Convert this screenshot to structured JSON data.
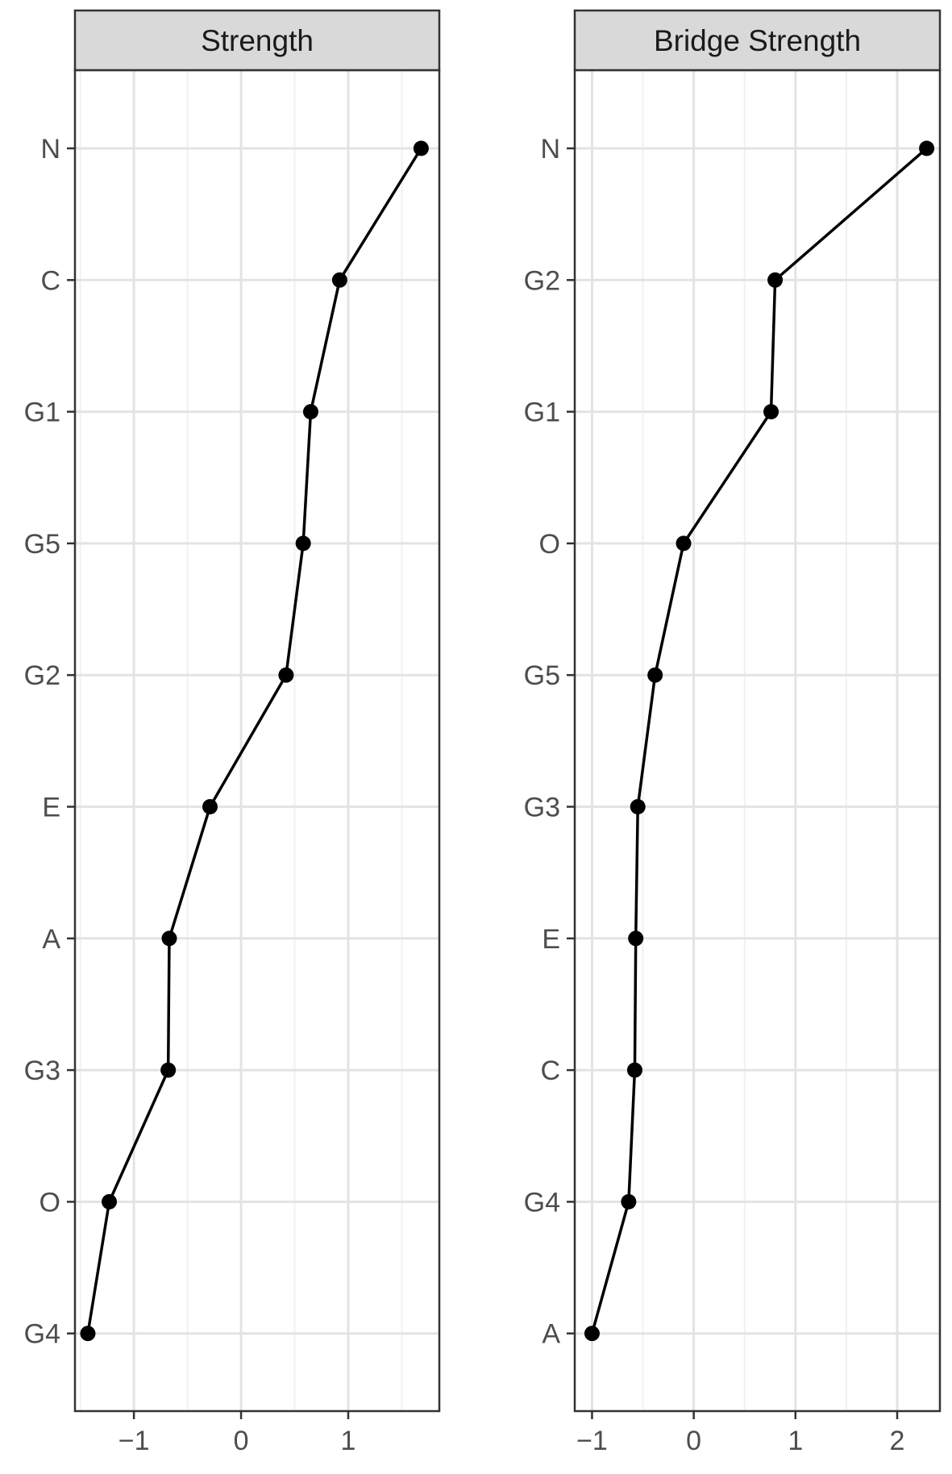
{
  "chart_data": [
    {
      "type": "line",
      "title": "Strength",
      "xlim": [
        -1.55,
        1.85
      ],
      "x_ticks": [
        -1,
        0,
        1
      ],
      "x_minor": [
        -1.5,
        -0.5,
        0.5,
        1.5
      ],
      "categories": [
        "N",
        "C",
        "G1",
        "G5",
        "G2",
        "E",
        "A",
        "G3",
        "O",
        "G4"
      ],
      "values": [
        1.68,
        0.92,
        0.65,
        0.58,
        0.42,
        -0.29,
        -0.67,
        -0.68,
        -1.23,
        -1.43
      ],
      "grid": true,
      "legend": "none"
    },
    {
      "type": "line",
      "title": "Bridge Strength",
      "xlim": [
        -1.17,
        2.42
      ],
      "x_ticks": [
        -1,
        0,
        1,
        2
      ],
      "x_minor": [
        -0.5,
        0.5,
        1.5
      ],
      "categories": [
        "N",
        "G2",
        "G1",
        "O",
        "G5",
        "G3",
        "E",
        "C",
        "G4",
        "A"
      ],
      "values": [
        2.29,
        0.8,
        0.76,
        -0.1,
        -0.38,
        -0.55,
        -0.57,
        -0.58,
        -0.64,
        -1.0
      ],
      "grid": true,
      "legend": "none"
    }
  ]
}
